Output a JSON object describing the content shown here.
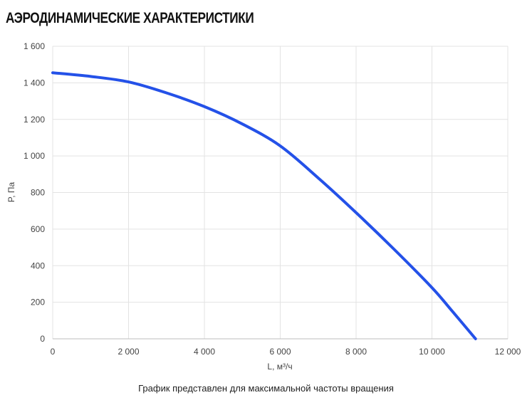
{
  "header": {
    "title": "АЭРОДИНАМИЧЕСКИЕ ХАРАКТЕРИСТИКИ"
  },
  "footer": {
    "caption": "График представлен для максимальной частоты вращения"
  },
  "chart_data": {
    "type": "line",
    "xlabel": "L, м³/ч",
    "ylabel": "P, Па",
    "xlim": [
      0,
      12000
    ],
    "ylim": [
      0,
      1600
    ],
    "x_ticks": [
      0,
      2000,
      4000,
      6000,
      8000,
      10000,
      12000
    ],
    "y_ticks": [
      0,
      200,
      400,
      600,
      800,
      1000,
      1200,
      1400,
      1600
    ],
    "x_tick_labels": [
      "0",
      "2 000",
      "4 000",
      "6 000",
      "8 000",
      "10 000",
      "12 000"
    ],
    "y_tick_labels": [
      "0",
      "200",
      "400",
      "600",
      "800",
      "1 000",
      "1 200",
      "1 400",
      "1 600"
    ],
    "grid": true,
    "colors": {
      "line": "#2451e8",
      "grid": "#e3e3e3"
    },
    "series": [
      {
        "x": [
          0,
          1000,
          2000,
          3000,
          4000,
          5000,
          6000,
          7000,
          8000,
          9000,
          10000,
          10500,
          11150
        ],
        "values": [
          1455,
          1435,
          1405,
          1345,
          1270,
          1175,
          1055,
          880,
          690,
          490,
          280,
          160,
          0
        ]
      }
    ]
  }
}
